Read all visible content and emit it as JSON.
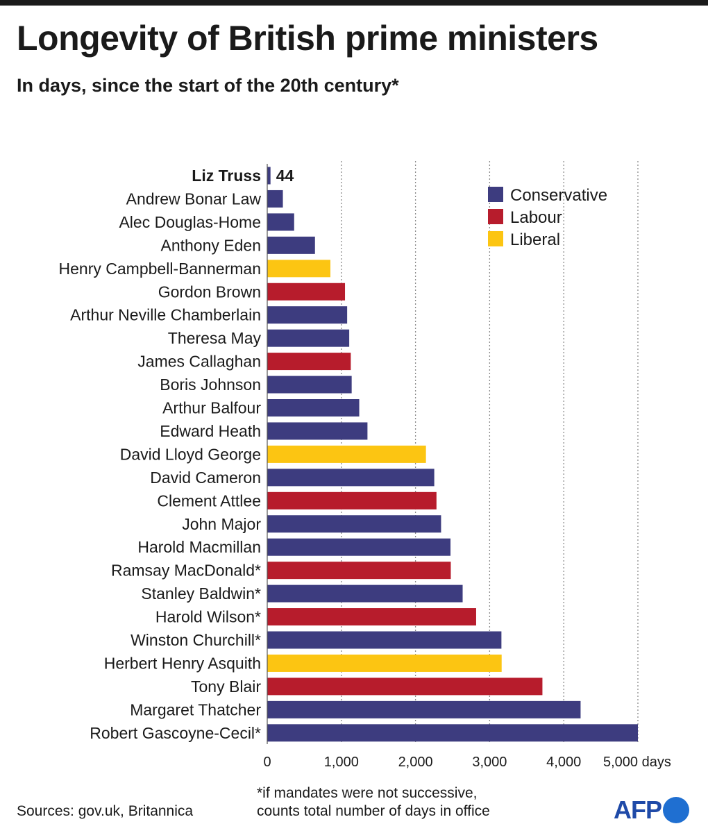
{
  "header": {
    "title": "Longevity of British prime ministers",
    "subtitle": "In days, since the start of the 20th century*"
  },
  "chart_data": {
    "type": "bar",
    "orientation": "horizontal",
    "title": "Longevity of British prime ministers",
    "subtitle": "In days, since the start of the 20th century*",
    "xlabel": "days",
    "xlim": [
      0,
      5000
    ],
    "xticks": [
      0,
      1000,
      2000,
      3000,
      4000,
      5000
    ],
    "xtick_labels": [
      "0",
      "1,000",
      "2,000",
      "3,000",
      "4,000",
      "5,000 days"
    ],
    "grid": "vertical-dotted",
    "legend_position": "top-right",
    "parties": [
      {
        "name": "Conservative",
        "color": "#3d3c7f"
      },
      {
        "name": "Labour",
        "color": "#b71c2c"
      },
      {
        "name": "Liberal",
        "color": "#fcc512"
      }
    ],
    "categories": [
      "Liz Truss",
      "Andrew Bonar Law",
      "Alec Douglas-Home",
      "Anthony Eden",
      "Henry Campbell-Bannerman",
      "Gordon Brown",
      "Arthur Neville Chamberlain",
      "Theresa May",
      "James Callaghan",
      "Boris Johnson",
      "Arthur Balfour",
      "Edward Heath",
      "David Lloyd George",
      "David Cameron",
      "Clement Attlee",
      "John Major",
      "Harold Macmillan",
      "Ramsay MacDonald*",
      "Stanley Baldwin*",
      "Harold Wilson*",
      "Winston Churchill*",
      "Herbert Henry Asquith",
      "Tony Blair",
      "Margaret Thatcher",
      "Robert Gascoyne-Cecil*"
    ],
    "values": [
      44,
      211,
      363,
      644,
      852,
      1049,
      1078,
      1106,
      1127,
      1139,
      1241,
      1352,
      2141,
      2253,
      2283,
      2345,
      2472,
      2476,
      2636,
      2818,
      3159,
      3162,
      3712,
      4227,
      5000
    ],
    "party": [
      "Conservative",
      "Conservative",
      "Conservative",
      "Conservative",
      "Liberal",
      "Labour",
      "Conservative",
      "Conservative",
      "Labour",
      "Conservative",
      "Conservative",
      "Conservative",
      "Liberal",
      "Conservative",
      "Labour",
      "Conservative",
      "Conservative",
      "Labour",
      "Conservative",
      "Labour",
      "Conservative",
      "Liberal",
      "Labour",
      "Conservative",
      "Conservative"
    ],
    "highlight": {
      "name": "Liz Truss",
      "label": "44"
    }
  },
  "footer": {
    "sources": "Sources: gov.uk, Britannica",
    "note_line1": "*if mandates were not successive,",
    "note_line2": "counts total number of days in office",
    "logo_text": "AFP"
  }
}
